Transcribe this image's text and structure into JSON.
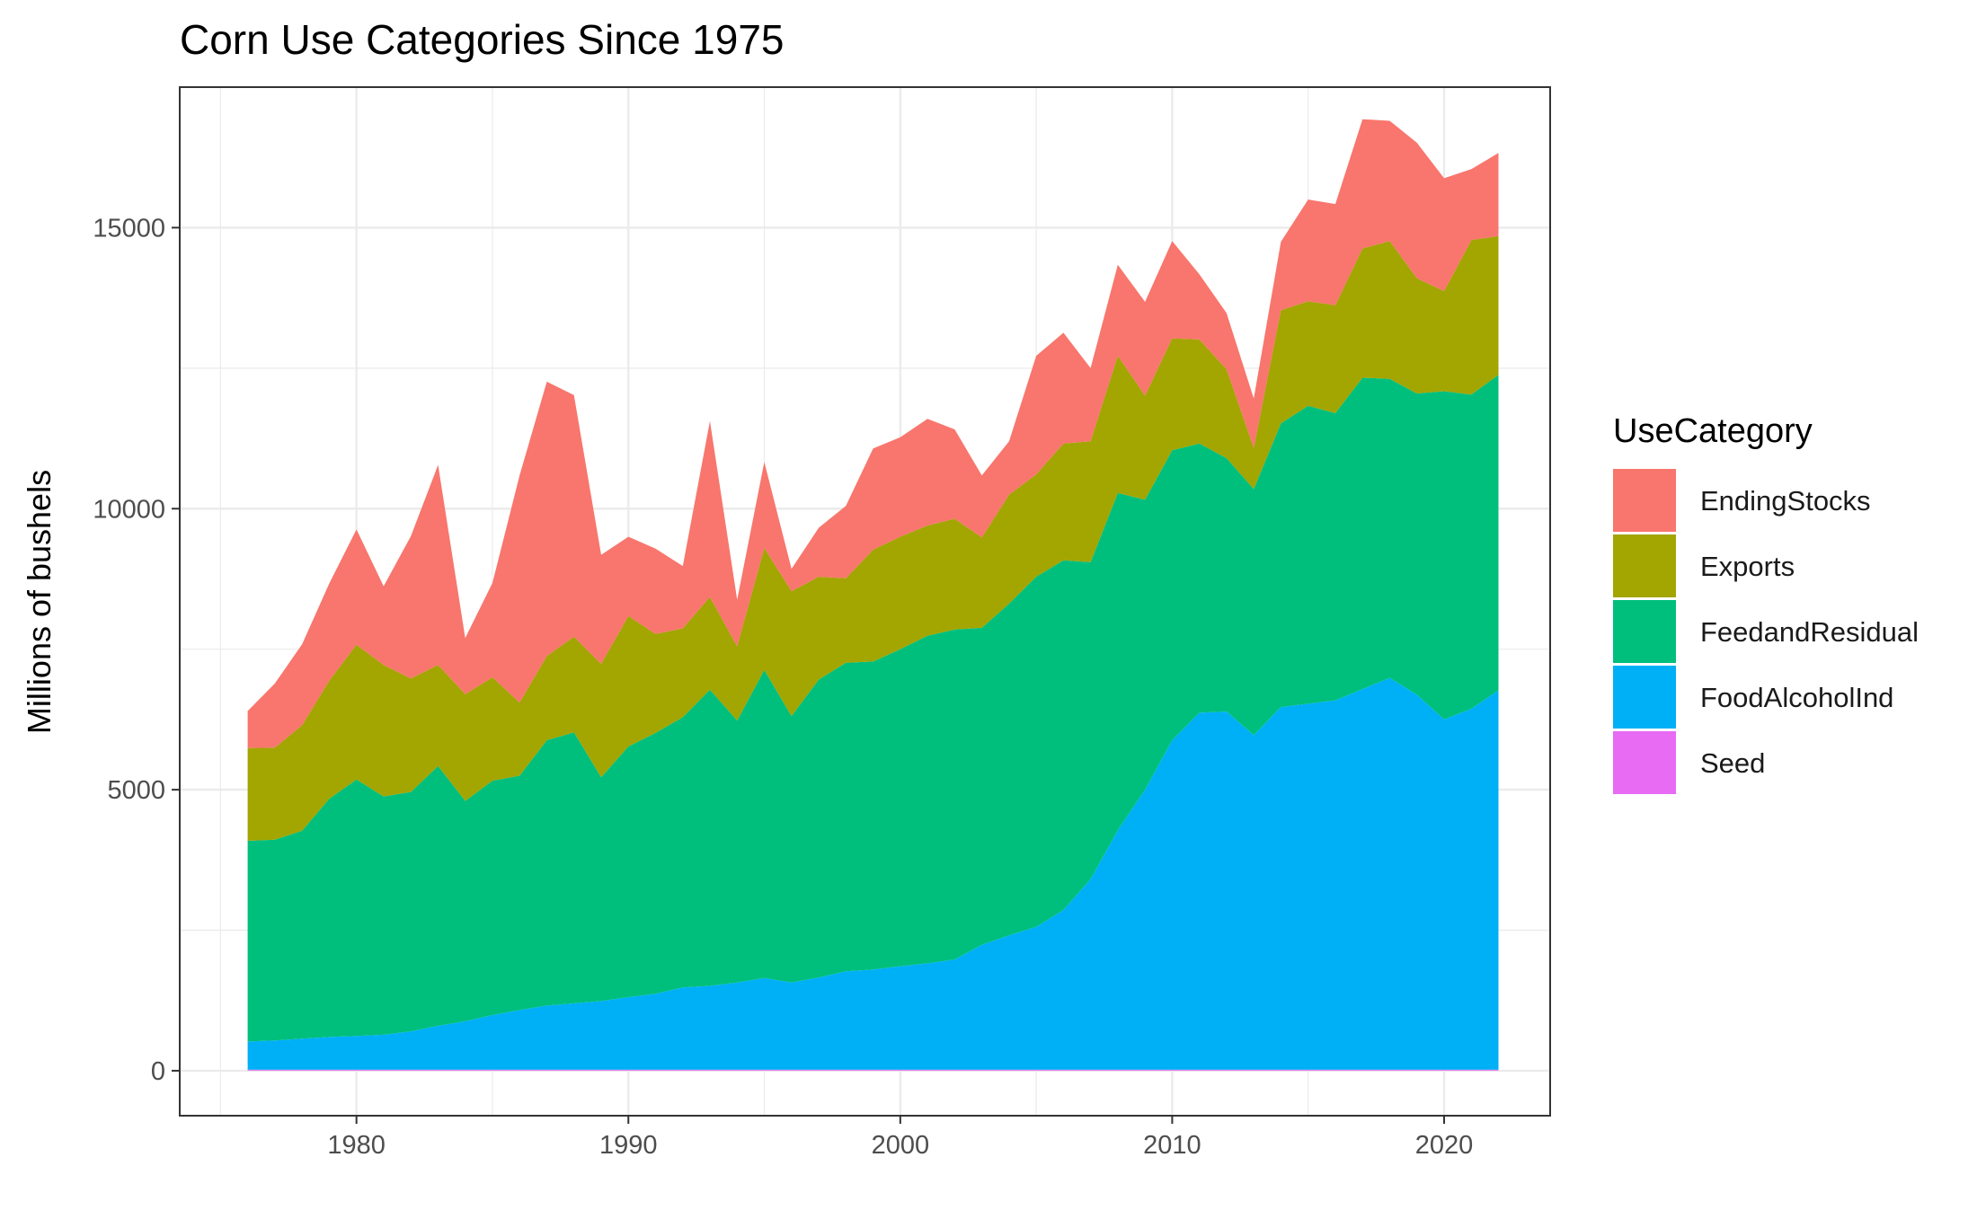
{
  "chart_data": {
    "type": "area",
    "stacked": true,
    "title": "Corn Use Categories Since 1975",
    "xlabel": "",
    "ylabel": "Millions of bushels",
    "xlim": [
      1973.5,
      2023.9
    ],
    "ylim": [
      -800,
      17500
    ],
    "xticks": [
      1980,
      1990,
      2000,
      2010,
      2020
    ],
    "yticks": [
      0,
      5000,
      10000,
      15000
    ],
    "grid": true,
    "legend": {
      "title": "UseCategory",
      "position": "right"
    },
    "x": [
      1976,
      1977,
      1978,
      1979,
      1980,
      1981,
      1982,
      1983,
      1984,
      1985,
      1986,
      1987,
      1988,
      1989,
      1990,
      1991,
      1992,
      1993,
      1994,
      1995,
      1996,
      1997,
      1998,
      1999,
      2000,
      2001,
      2002,
      2003,
      2004,
      2005,
      2006,
      2007,
      2008,
      2009,
      2010,
      2011,
      2012,
      2013,
      2014,
      2015,
      2016,
      2017,
      2018,
      2019,
      2020,
      2021,
      2022
    ],
    "series": [
      {
        "name": "Seed",
        "color": "#E76BF3",
        "values": [
          20,
          20,
          20,
          20,
          20,
          20,
          20,
          20,
          20,
          20,
          20,
          20,
          20,
          20,
          20,
          20,
          20,
          20,
          20,
          20,
          20,
          20,
          20,
          20,
          20,
          20,
          20,
          20,
          20,
          20,
          20,
          20,
          20,
          20,
          20,
          20,
          20,
          20,
          20,
          20,
          20,
          20,
          20,
          20,
          20,
          20,
          20
        ]
      },
      {
        "name": "FoodAlcoholInd",
        "color": "#00B0F6",
        "values": [
          500,
          520,
          550,
          580,
          600,
          620,
          680,
          780,
          860,
          970,
          1060,
          1140,
          1180,
          1220,
          1290,
          1350,
          1460,
          1490,
          1550,
          1630,
          1550,
          1640,
          1750,
          1780,
          1840,
          1890,
          1960,
          2220,
          2390,
          2540,
          2840,
          3390,
          4260,
          4980,
          5860,
          6350,
          6370,
          5950,
          6450,
          6510,
          6570,
          6770,
          6970,
          6670,
          6230,
          6420,
          6750
        ]
      },
      {
        "name": "FeedandResidual",
        "color": "#00BF7D",
        "values": [
          3570,
          3570,
          3700,
          4240,
          4560,
          4240,
          4260,
          4620,
          3920,
          4170,
          4170,
          4720,
          4820,
          3980,
          4460,
          4640,
          4810,
          5270,
          4660,
          5480,
          4740,
          5300,
          5490,
          5480,
          5640,
          5830,
          5870,
          5640,
          5900,
          6230,
          6220,
          5640,
          6000,
          5160,
          5160,
          4790,
          4510,
          4380,
          5050,
          5300,
          5110,
          5540,
          5320,
          5360,
          5840,
          5590,
          5610
        ]
      },
      {
        "name": "Exports",
        "color": "#A3A500",
        "values": [
          1650,
          1640,
          1880,
          2100,
          2400,
          2340,
          2020,
          1800,
          1900,
          1840,
          1300,
          1500,
          1700,
          2020,
          2320,
          1760,
          1580,
          1650,
          1320,
          2170,
          2220,
          1830,
          1500,
          1990,
          2000,
          1960,
          1970,
          1610,
          1940,
          1820,
          2080,
          2150,
          2440,
          1850,
          1990,
          1850,
          1580,
          730,
          2010,
          1860,
          1920,
          2300,
          2450,
          2050,
          1780,
          2750,
          2470
        ]
      },
      {
        "name": "EndingStocks",
        "color": "#F8766D",
        "values": [
          660,
          1140,
          1440,
          1730,
          2050,
          1400,
          2530,
          3560,
          1000,
          1680,
          4040,
          4880,
          4300,
          1940,
          1410,
          1520,
          1110,
          3130,
          830,
          1530,
          400,
          870,
          1290,
          1800,
          1770,
          1900,
          1590,
          1100,
          950,
          2110,
          1970,
          1300,
          1620,
          1670,
          1730,
          1160,
          1000,
          880,
          1220,
          1810,
          1800,
          2300,
          2140,
          2410,
          2010,
          1260,
          1480
        ]
      }
    ]
  }
}
